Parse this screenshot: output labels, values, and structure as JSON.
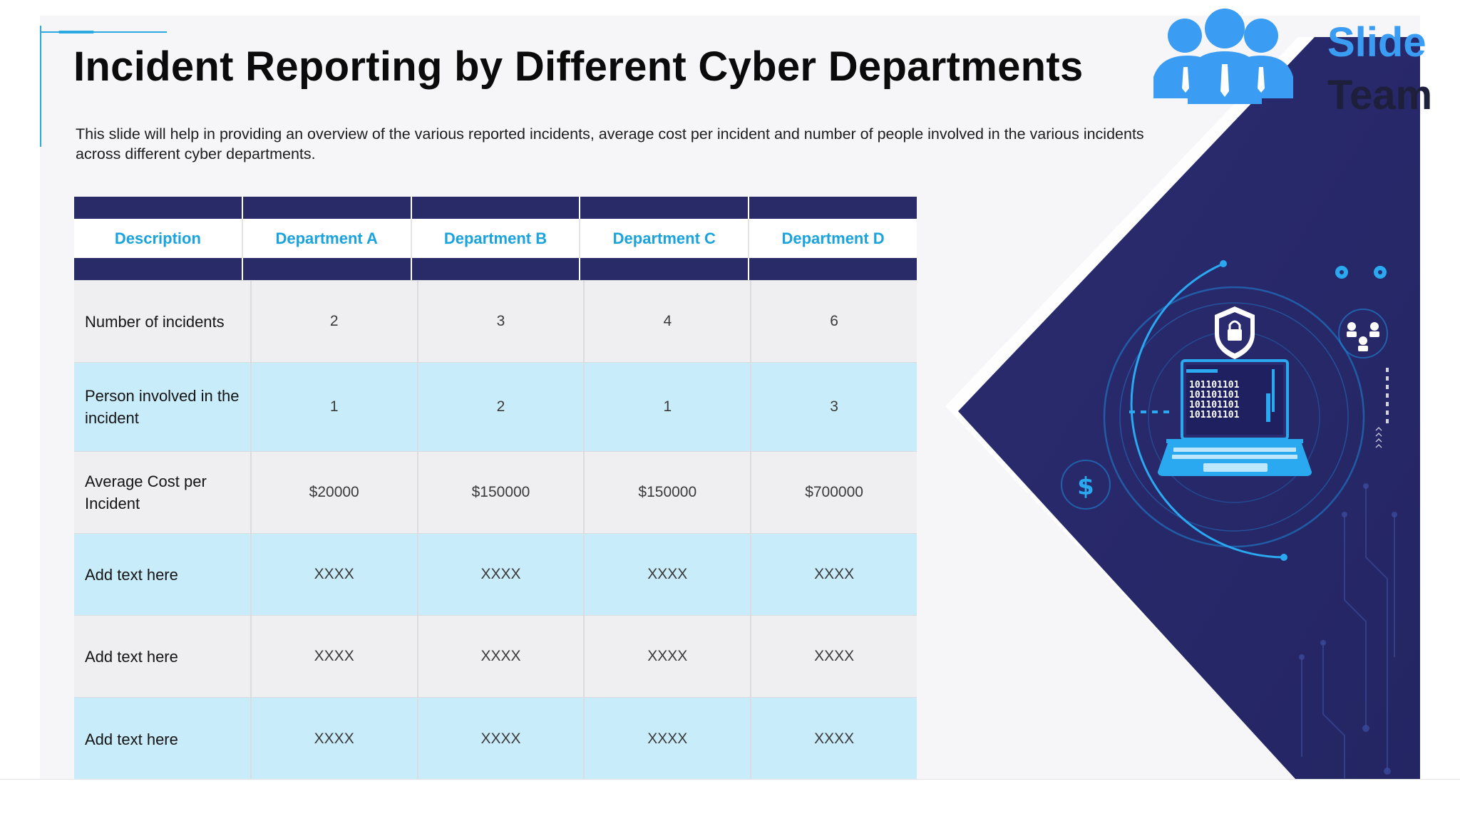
{
  "slide": {
    "title": "Incident Reporting by Different Cyber Departments",
    "subtitle": "This slide will help in providing an overview of the various reported incidents, average cost per incident and  number of people involved in the various incidents across different cyber departments."
  },
  "table": {
    "headers": [
      "Description",
      "Department A",
      "Department B",
      "Department C",
      "Department D"
    ],
    "rows": [
      {
        "label": "Number of incidents",
        "values": [
          "2",
          "3",
          "4",
          "6"
        ]
      },
      {
        "label": "Person involved in the incident",
        "values": [
          "1",
          "2",
          "1",
          "3"
        ]
      },
      {
        "label": "Average Cost per Incident",
        "values": [
          "$20000",
          "$150000",
          "$150000",
          "$700000"
        ]
      },
      {
        "label": "Add text here",
        "values": [
          "XXXX",
          "XXXX",
          "XXXX",
          "XXXX"
        ]
      },
      {
        "label": "Add text here",
        "values": [
          "XXXX",
          "XXXX",
          "XXXX",
          "XXXX"
        ]
      },
      {
        "label": "Add text here",
        "values": [
          "XXXX",
          "XXXX",
          "XXXX",
          "XXXX"
        ]
      }
    ]
  },
  "graphic": {
    "binary_lines": [
      "101101101",
      "101101101",
      "101101101",
      "101101101"
    ],
    "dollar_symbol": "$",
    "icons": [
      "shield-lock-icon",
      "laptop-icon",
      "dollar-icon",
      "network-users-icon",
      "gear-icon"
    ]
  },
  "logo": {
    "line1": "Slide",
    "line2": "Team"
  },
  "colors": {
    "navy": "#292a68",
    "accent_blue": "#1aa3dc",
    "row_blue": "#c9ecfa",
    "row_grey": "#efeff1",
    "logo_blue": "#3a9cf2"
  }
}
